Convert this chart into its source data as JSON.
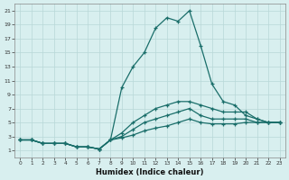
{
  "xlabel": "Humidex (Indice chaleur)",
  "background_color": "#d8efef",
  "grid_color": "#b8d8d8",
  "line_color": "#1a6e6a",
  "xlim": [
    -0.5,
    23.5
  ],
  "ylim": [
    0,
    22
  ],
  "xticks": [
    0,
    1,
    2,
    3,
    4,
    5,
    6,
    7,
    8,
    9,
    10,
    11,
    12,
    13,
    14,
    15,
    16,
    17,
    18,
    19,
    20,
    21,
    22,
    23
  ],
  "yticks": [
    1,
    3,
    5,
    7,
    9,
    11,
    13,
    15,
    17,
    19,
    21
  ],
  "lines": [
    {
      "x": [
        0,
        1,
        2,
        3,
        4,
        5,
        6,
        7,
        8,
        9,
        10,
        11,
        12,
        13,
        14,
        15,
        16,
        17,
        18,
        19,
        20,
        21,
        22,
        23
      ],
      "y": [
        2.5,
        2.5,
        2.0,
        2.0,
        2.0,
        1.5,
        1.5,
        1.2,
        2.5,
        10.0,
        13.0,
        15.0,
        18.5,
        20.0,
        19.5,
        21.0,
        16.0,
        10.5,
        8.0,
        7.5,
        6.0,
        5.5,
        5.0,
        5.0
      ]
    },
    {
      "x": [
        0,
        1,
        2,
        3,
        4,
        5,
        6,
        7,
        8,
        9,
        10,
        11,
        12,
        13,
        14,
        15,
        16,
        17,
        18,
        19,
        20,
        21,
        22,
        23
      ],
      "y": [
        2.5,
        2.5,
        2.0,
        2.0,
        2.0,
        1.5,
        1.5,
        1.2,
        2.5,
        3.5,
        5.0,
        6.0,
        7.0,
        7.5,
        8.0,
        8.0,
        7.5,
        7.0,
        6.5,
        6.5,
        6.5,
        5.5,
        5.0,
        5.0
      ]
    },
    {
      "x": [
        0,
        1,
        2,
        3,
        4,
        5,
        6,
        7,
        8,
        9,
        10,
        11,
        12,
        13,
        14,
        15,
        16,
        17,
        18,
        19,
        20,
        21,
        22,
        23
      ],
      "y": [
        2.5,
        2.5,
        2.0,
        2.0,
        2.0,
        1.5,
        1.5,
        1.2,
        2.5,
        3.0,
        4.0,
        5.0,
        5.5,
        6.0,
        6.5,
        7.0,
        6.0,
        5.5,
        5.5,
        5.5,
        5.5,
        5.0,
        5.0,
        5.0
      ]
    },
    {
      "x": [
        0,
        1,
        2,
        3,
        4,
        5,
        6,
        7,
        8,
        9,
        10,
        11,
        12,
        13,
        14,
        15,
        16,
        17,
        18,
        19,
        20,
        21,
        22,
        23
      ],
      "y": [
        2.5,
        2.5,
        2.0,
        2.0,
        2.0,
        1.5,
        1.5,
        1.2,
        2.5,
        2.8,
        3.2,
        3.8,
        4.2,
        4.5,
        5.0,
        5.5,
        5.0,
        4.8,
        4.8,
        4.8,
        5.0,
        5.0,
        5.0,
        5.0
      ]
    }
  ]
}
